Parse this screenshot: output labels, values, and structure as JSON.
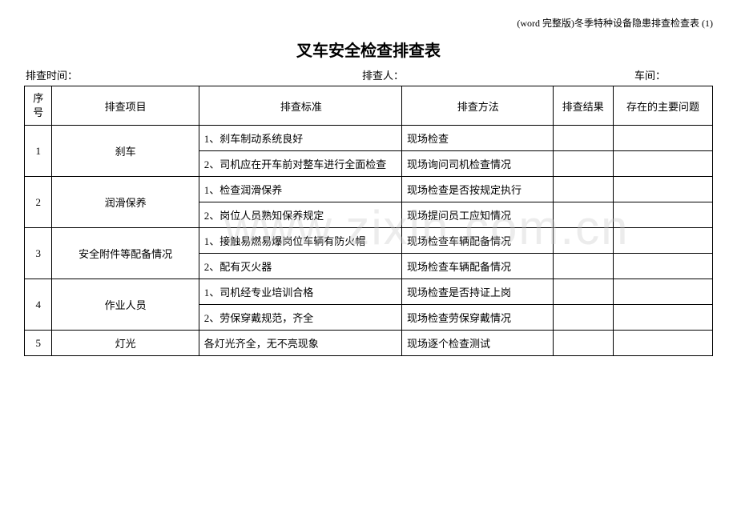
{
  "header_right": "(word 完整版)冬季特种设备隐患排查检查表 (1)",
  "title": "叉车安全检查排查表",
  "info": {
    "time_label": "排查时间：",
    "person_label": "排查人：",
    "workshop_label": "车间："
  },
  "columns": {
    "seq_line1": "序",
    "seq_line2": "号",
    "item": "排查项目",
    "standard": "排查标准",
    "method": "排查方法",
    "result": "排查结果",
    "issue": "存在的主要问题"
  },
  "rows": [
    {
      "seq": "1",
      "item": "刹车",
      "subs": [
        {
          "std": "1、刹车制动系统良好",
          "method": "现场检查"
        },
        {
          "std": "2、司机应在开车前对整车进行全面检查",
          "method": "现场询问司机检查情况"
        }
      ]
    },
    {
      "seq": "2",
      "item": "润滑保养",
      "subs": [
        {
          "std": "1、检查润滑保养",
          "method": "现场检查是否按规定执行"
        },
        {
          "std": "2、岗位人员熟知保养规定",
          "method": "现场提问员工应知情况"
        }
      ]
    },
    {
      "seq": "3",
      "item": "安全附件等配备情况",
      "subs": [
        {
          "std": "1、接触易燃易爆岗位车辆有防火帽",
          "method": "现场检查车辆配备情况"
        },
        {
          "std": "2、配有灭火器",
          "method": "现场检查车辆配备情况"
        }
      ]
    },
    {
      "seq": "4",
      "item": "作业人员",
      "subs": [
        {
          "std": "1、司机经专业培训合格",
          "method": "现场检查是否持证上岗"
        },
        {
          "std": "2、劳保穿戴规范，齐全",
          "method": "现场检查劳保穿戴情况"
        }
      ]
    },
    {
      "seq": "5",
      "item": "灯光",
      "subs": [
        {
          "std": "各灯光齐全，无不亮现象",
          "method": "现场逐个检查测试"
        }
      ]
    }
  ],
  "watermark": "www.zixin.com.cn"
}
